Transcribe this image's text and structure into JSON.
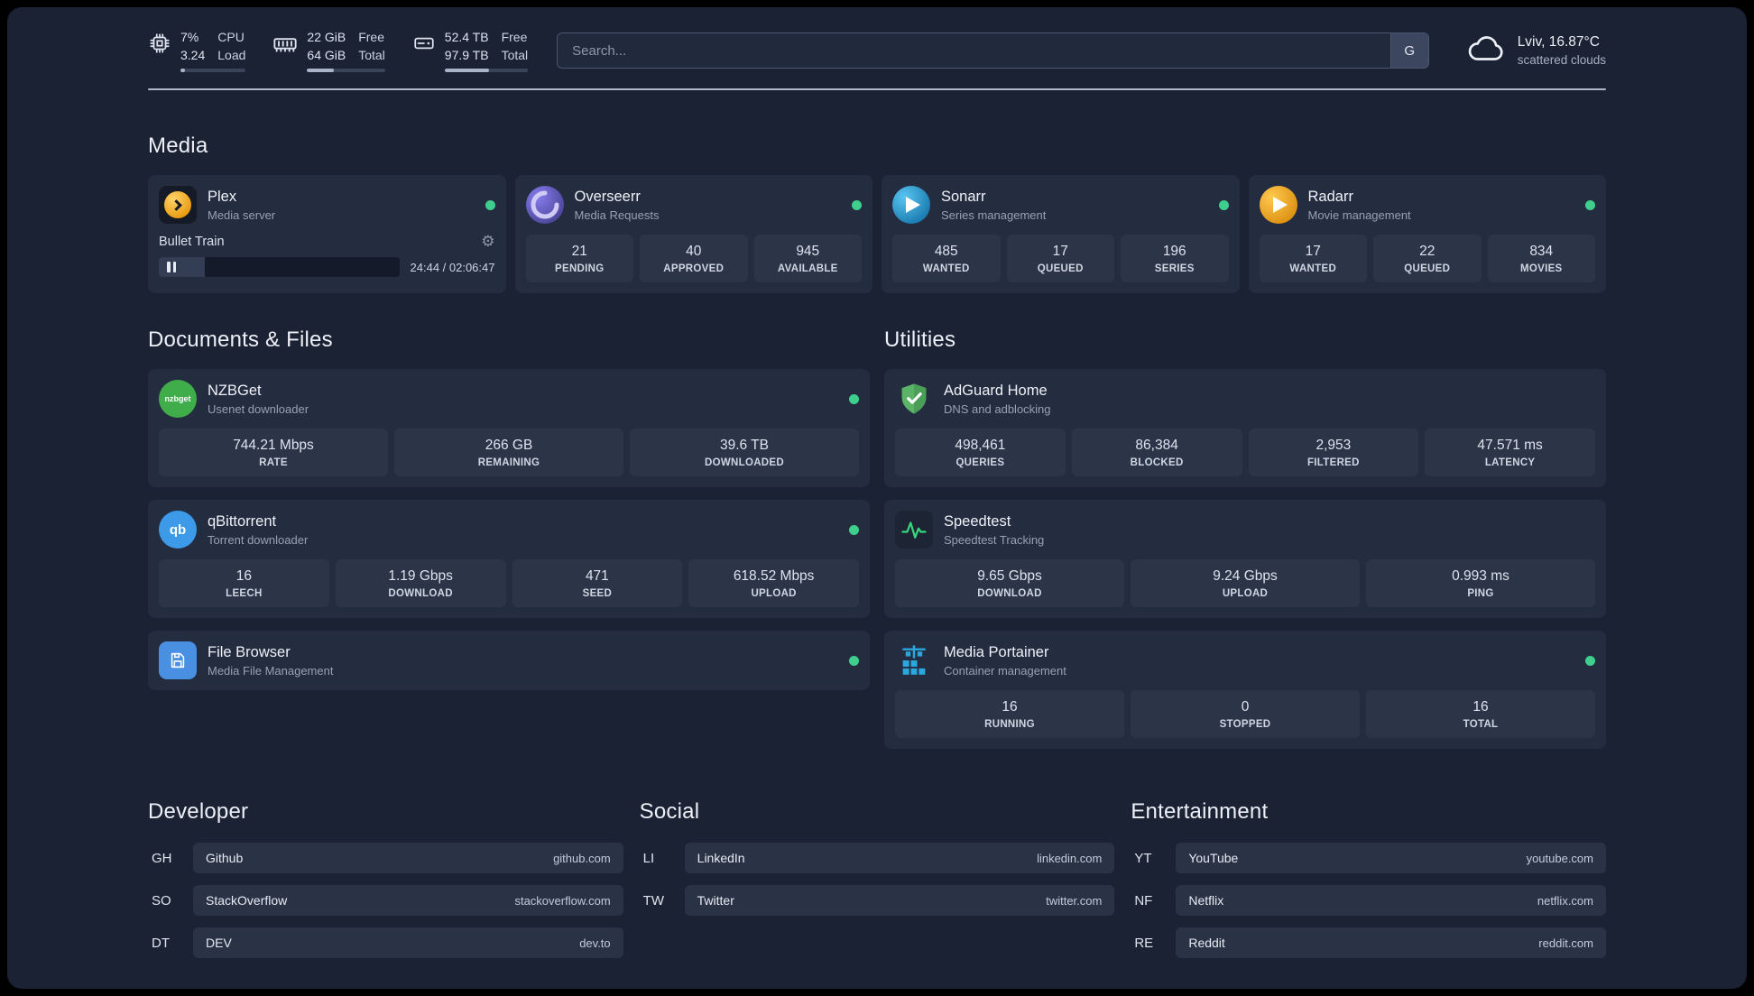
{
  "colors": {
    "status_online": "#3ecf8e",
    "plex_gold": "#e89b10",
    "sonarr_blue": "#2193c9",
    "radarr_amber": "#f0a42a",
    "overseerr_purple": "#5a50c8",
    "adguard_green": "#5bb368",
    "portainer_blue": "#2aa7dd"
  },
  "icons": {
    "settings": "⚙",
    "nzbget_label": "nzbget",
    "qb_label": "qb"
  },
  "header": {
    "cpu": {
      "value_top": "7%",
      "value_bottom": "3.24",
      "label_top": "CPU",
      "label_bottom": "Load",
      "usage_pct": 7
    },
    "ram": {
      "value_top": "22 GiB",
      "value_bottom": "64 GiB",
      "label_top": "Free",
      "label_bottom": "Total",
      "usage_pct": 34
    },
    "disk": {
      "value_top": "52.4 TB",
      "value_bottom": "97.9 TB",
      "label_top": "Free",
      "label_bottom": "Total",
      "usage_pct": 53
    },
    "search": {
      "placeholder": "Search...",
      "engine_label": "G"
    },
    "weather": {
      "location": "Lviv, 16.87°C",
      "condition": "scattered clouds"
    }
  },
  "media": {
    "title": "Media",
    "plex": {
      "name": "Plex",
      "desc": "Media server",
      "now_playing": "Bullet Train",
      "time": "24:44 / 02:06:47",
      "progress_pct": 19
    },
    "overseerr": {
      "name": "Overseerr",
      "desc": "Media Requests",
      "stats": [
        {
          "value": "21",
          "label": "PENDING"
        },
        {
          "value": "40",
          "label": "APPROVED"
        },
        {
          "value": "945",
          "label": "AVAILABLE"
        }
      ]
    },
    "sonarr": {
      "name": "Sonarr",
      "desc": "Series management",
      "stats": [
        {
          "value": "485",
          "label": "WANTED"
        },
        {
          "value": "17",
          "label": "QUEUED"
        },
        {
          "value": "196",
          "label": "SERIES"
        }
      ]
    },
    "radarr": {
      "name": "Radarr",
      "desc": "Movie management",
      "stats": [
        {
          "value": "17",
          "label": "WANTED"
        },
        {
          "value": "22",
          "label": "QUEUED"
        },
        {
          "value": "834",
          "label": "MOVIES"
        }
      ]
    }
  },
  "documents": {
    "title": "Documents & Files",
    "nzbget": {
      "name": "NZBGet",
      "desc": "Usenet downloader",
      "stats": [
        {
          "value": "744.21 Mbps",
          "label": "RATE"
        },
        {
          "value": "266 GB",
          "label": "REMAINING"
        },
        {
          "value": "39.6 TB",
          "label": "DOWNLOADED"
        }
      ]
    },
    "qbittorrent": {
      "name": "qBittorrent",
      "desc": "Torrent downloader",
      "stats": [
        {
          "value": "16",
          "label": "LEECH"
        },
        {
          "value": "1.19 Gbps",
          "label": "DOWNLOAD"
        },
        {
          "value": "471",
          "label": "SEED"
        },
        {
          "value": "618.52 Mbps",
          "label": "UPLOAD"
        }
      ]
    },
    "filebrowser": {
      "name": "File Browser",
      "desc": "Media File Management"
    }
  },
  "utilities": {
    "title": "Utilities",
    "adguard": {
      "name": "AdGuard Home",
      "desc": "DNS and adblocking",
      "stats": [
        {
          "value": "498,461",
          "label": "QUERIES"
        },
        {
          "value": "86,384",
          "label": "BLOCKED"
        },
        {
          "value": "2,953",
          "label": "FILTERED"
        },
        {
          "value": "47.571 ms",
          "label": "LATENCY"
        }
      ]
    },
    "speedtest": {
      "name": "Speedtest",
      "desc": "Speedtest Tracking",
      "stats": [
        {
          "value": "9.65 Gbps",
          "label": "DOWNLOAD"
        },
        {
          "value": "9.24 Gbps",
          "label": "UPLOAD"
        },
        {
          "value": "0.993 ms",
          "label": "PING"
        }
      ]
    },
    "portainer": {
      "name": "Media Portainer",
      "desc": "Container management",
      "stats": [
        {
          "value": "16",
          "label": "RUNNING"
        },
        {
          "value": "0",
          "label": "STOPPED"
        },
        {
          "value": "16",
          "label": "TOTAL"
        }
      ]
    }
  },
  "bookmarks": {
    "developer": {
      "title": "Developer",
      "items": [
        {
          "abbr": "GH",
          "name": "Github",
          "url": "github.com"
        },
        {
          "abbr": "SO",
          "name": "StackOverflow",
          "url": "stackoverflow.com"
        },
        {
          "abbr": "DT",
          "name": "DEV",
          "url": "dev.to"
        }
      ]
    },
    "social": {
      "title": "Social",
      "items": [
        {
          "abbr": "LI",
          "name": "LinkedIn",
          "url": "linkedin.com"
        },
        {
          "abbr": "TW",
          "name": "Twitter",
          "url": "twitter.com"
        }
      ]
    },
    "entertainment": {
      "title": "Entertainment",
      "items": [
        {
          "abbr": "YT",
          "name": "YouTube",
          "url": "youtube.com"
        },
        {
          "abbr": "NF",
          "name": "Netflix",
          "url": "netflix.com"
        },
        {
          "abbr": "RE",
          "name": "Reddit",
          "url": "reddit.com"
        }
      ]
    }
  }
}
